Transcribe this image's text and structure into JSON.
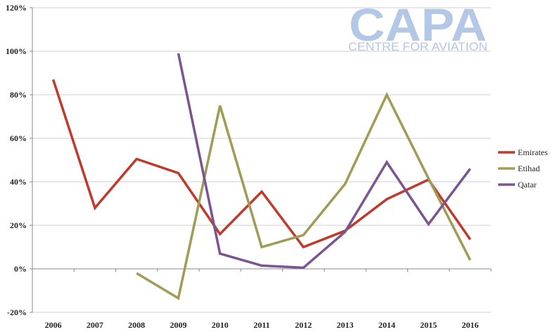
{
  "logo": {
    "main": "CAPA",
    "sub": "CENTRE FOR AVIATION",
    "color": "#b3c8e6"
  },
  "chart_data": {
    "type": "line",
    "title": "",
    "xlabel": "",
    "ylabel": "",
    "x": [
      "2006",
      "2007",
      "2008",
      "2009",
      "2010",
      "2011",
      "2012",
      "2013",
      "2014",
      "2015",
      "2016"
    ],
    "ylim": [
      -20,
      120
    ],
    "yticks": [
      -20,
      0,
      20,
      40,
      60,
      80,
      100,
      120
    ],
    "ytick_labels": [
      "-20%",
      "0%",
      "20%",
      "40%",
      "60%",
      "80%",
      "100%",
      "120%"
    ],
    "grid": true,
    "legend": "right",
    "series": [
      {
        "name": "Emirates",
        "color": "#c0392b",
        "values": [
          87,
          28,
          50.5,
          44,
          16,
          35.5,
          10,
          17.5,
          32,
          41,
          13.5
        ]
      },
      {
        "name": "Etihad",
        "color": "#a09b55",
        "values": [
          null,
          null,
          -2,
          -13.5,
          75,
          10,
          15.5,
          39,
          80,
          41.5,
          4
        ]
      },
      {
        "name": "Qatar",
        "color": "#7a5591",
        "values": [
          null,
          null,
          null,
          99,
          7,
          1.5,
          0.5,
          17,
          49,
          20.5,
          46
        ]
      }
    ]
  }
}
